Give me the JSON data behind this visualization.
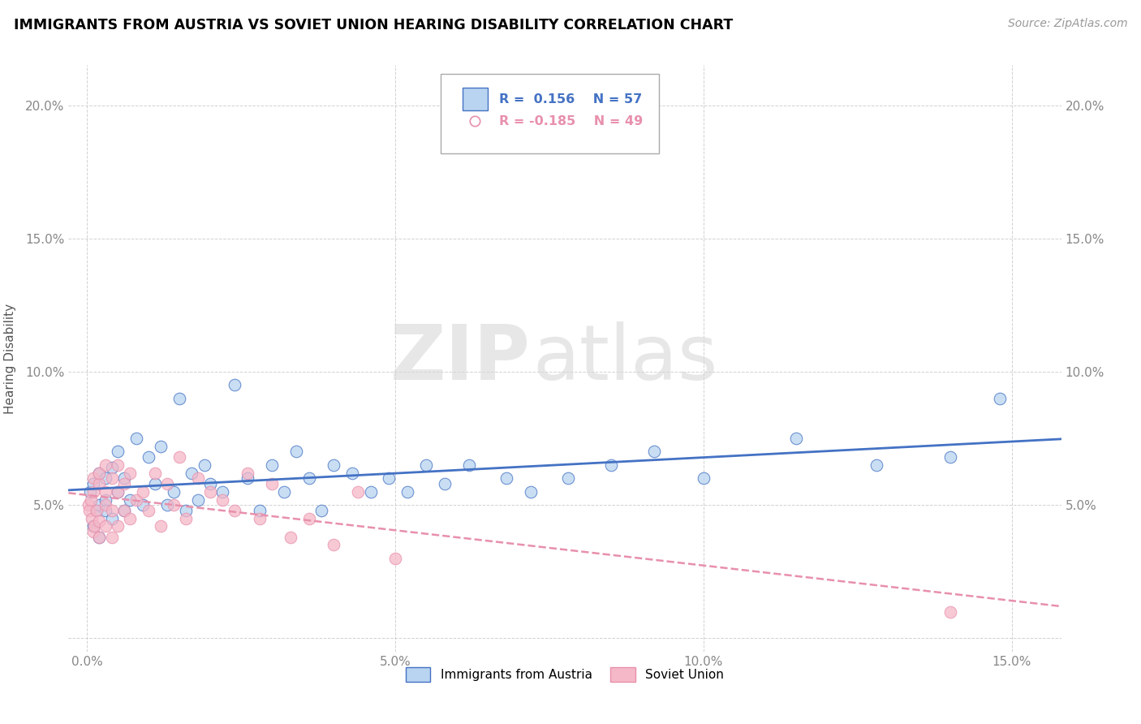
{
  "title": "IMMIGRANTS FROM AUSTRIA VS SOVIET UNION HEARING DISABILITY CORRELATION CHART",
  "source": "Source: ZipAtlas.com",
  "xlim": [
    -0.003,
    0.158
  ],
  "ylim": [
    -0.005,
    0.215
  ],
  "austria_R": 0.156,
  "austria_N": 57,
  "soviet_R": -0.185,
  "soviet_N": 49,
  "austria_color": "#b8d4f0",
  "soviet_color": "#f5b8c8",
  "austria_line_color": "#4472c4",
  "soviet_line_color": "#e890ac",
  "watermark_zip": "ZIP",
  "watermark_atlas": "atlas",
  "austria_scatter_x": [
    0.0005,
    0.001,
    0.001,
    0.0015,
    0.002,
    0.002,
    0.002,
    0.003,
    0.003,
    0.003,
    0.004,
    0.004,
    0.005,
    0.005,
    0.006,
    0.006,
    0.007,
    0.008,
    0.009,
    0.01,
    0.011,
    0.012,
    0.013,
    0.014,
    0.015,
    0.016,
    0.017,
    0.018,
    0.019,
    0.02,
    0.022,
    0.024,
    0.026,
    0.028,
    0.03,
    0.032,
    0.034,
    0.036,
    0.038,
    0.04,
    0.043,
    0.046,
    0.049,
    0.052,
    0.055,
    0.058,
    0.062,
    0.068,
    0.072,
    0.078,
    0.085,
    0.092,
    0.1,
    0.115,
    0.128,
    0.14,
    0.148
  ],
  "austria_scatter_y": [
    0.055,
    0.042,
    0.058,
    0.048,
    0.05,
    0.062,
    0.038,
    0.052,
    0.06,
    0.048,
    0.064,
    0.045,
    0.055,
    0.07,
    0.048,
    0.06,
    0.052,
    0.075,
    0.05,
    0.068,
    0.058,
    0.072,
    0.05,
    0.055,
    0.09,
    0.048,
    0.062,
    0.052,
    0.065,
    0.058,
    0.055,
    0.095,
    0.06,
    0.048,
    0.065,
    0.055,
    0.07,
    0.06,
    0.048,
    0.065,
    0.062,
    0.055,
    0.06,
    0.055,
    0.065,
    0.058,
    0.065,
    0.06,
    0.055,
    0.06,
    0.065,
    0.07,
    0.06,
    0.075,
    0.065,
    0.068,
    0.09
  ],
  "soviet_scatter_x": [
    0.0002,
    0.0004,
    0.0006,
    0.0008,
    0.001,
    0.001,
    0.001,
    0.0012,
    0.0015,
    0.002,
    0.002,
    0.002,
    0.002,
    0.003,
    0.003,
    0.003,
    0.003,
    0.004,
    0.004,
    0.004,
    0.005,
    0.005,
    0.005,
    0.006,
    0.006,
    0.007,
    0.007,
    0.008,
    0.009,
    0.01,
    0.011,
    0.012,
    0.013,
    0.014,
    0.015,
    0.016,
    0.018,
    0.02,
    0.022,
    0.024,
    0.026,
    0.028,
    0.03,
    0.033,
    0.036,
    0.04,
    0.044,
    0.05,
    0.14
  ],
  "soviet_scatter_y": [
    0.05,
    0.048,
    0.052,
    0.045,
    0.055,
    0.04,
    0.06,
    0.042,
    0.048,
    0.058,
    0.044,
    0.062,
    0.038,
    0.05,
    0.055,
    0.042,
    0.065,
    0.048,
    0.038,
    0.06,
    0.055,
    0.042,
    0.065,
    0.048,
    0.058,
    0.045,
    0.062,
    0.052,
    0.055,
    0.048,
    0.062,
    0.042,
    0.058,
    0.05,
    0.068,
    0.045,
    0.06,
    0.055,
    0.052,
    0.048,
    0.062,
    0.045,
    0.058,
    0.038,
    0.045,
    0.035,
    0.055,
    0.03,
    0.01
  ]
}
